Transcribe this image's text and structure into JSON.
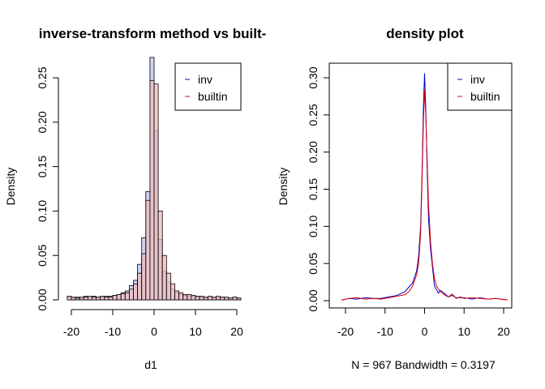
{
  "chart_data": [
    {
      "type": "histogram",
      "title": "inverse-transform method vs built-",
      "xlabel": "d1",
      "ylabel": "Density",
      "xlim": [
        -20,
        20
      ],
      "ylim": [
        0,
        0.27
      ],
      "x_ticks": [
        -20,
        -10,
        0,
        10,
        20
      ],
      "y_ticks": [
        0.0,
        0.05,
        0.1,
        0.15,
        0.2,
        0.25
      ],
      "x_tick_labels": [
        "-20",
        "-10",
        "0",
        "10",
        "20"
      ],
      "y_tick_labels": [
        "0.00",
        "0.05",
        "0.10",
        "0.15",
        "0.20",
        "0.25"
      ],
      "bin_width": 1,
      "bin_starts": [
        -21,
        -20,
        -19,
        -18,
        -17,
        -16,
        -15,
        -14,
        -13,
        -12,
        -11,
        -10,
        -9,
        -8,
        -7,
        -6,
        -5,
        -4,
        -3,
        -2,
        -1,
        0,
        1,
        2,
        3,
        4,
        5,
        6,
        7,
        8,
        9,
        10,
        11,
        12,
        13,
        14,
        15,
        16,
        17,
        18,
        19,
        20
      ],
      "series": [
        {
          "name": "inv",
          "color": "#c7cdf3",
          "values": [
            0.003,
            0.002,
            0.003,
            0.002,
            0.004,
            0.003,
            0.004,
            0.003,
            0.003,
            0.004,
            0.004,
            0.005,
            0.006,
            0.008,
            0.01,
            0.016,
            0.022,
            0.04,
            0.07,
            0.122,
            0.273,
            0.19,
            0.068,
            0.032,
            0.02,
            0.012,
            0.008,
            0.006,
            0.005,
            0.004,
            0.004,
            0.003,
            0.003,
            0.002,
            0.003,
            0.002,
            0.002,
            0.003,
            0.002,
            0.002,
            0.003,
            0.002
          ]
        },
        {
          "name": "builtin",
          "color": "#f2bcbc",
          "values": [
            0.004,
            0.003,
            0.002,
            0.003,
            0.003,
            0.004,
            0.003,
            0.003,
            0.004,
            0.003,
            0.003,
            0.005,
            0.006,
            0.007,
            0.008,
            0.012,
            0.018,
            0.03,
            0.052,
            0.112,
            0.247,
            0.243,
            0.1,
            0.05,
            0.03,
            0.018,
            0.01,
            0.008,
            0.006,
            0.006,
            0.005,
            0.004,
            0.004,
            0.003,
            0.004,
            0.003,
            0.004,
            0.003,
            0.003,
            0.002,
            0.003,
            0.002
          ]
        }
      ],
      "legend": {
        "position": "top-right",
        "entries": [
          "inv",
          "builtin"
        ]
      }
    },
    {
      "type": "line",
      "title": "density plot",
      "xlabel": "N = 967   Bandwidth = 0.3197",
      "ylabel": "Density",
      "xlim": [
        -21,
        21
      ],
      "ylim": [
        0,
        0.32
      ],
      "x_ticks": [
        -20,
        -10,
        0,
        10,
        20
      ],
      "y_ticks": [
        0.0,
        0.05,
        0.1,
        0.15,
        0.2,
        0.25,
        0.3
      ],
      "x_tick_labels": [
        "-20",
        "-10",
        "0",
        "10",
        "20"
      ],
      "y_tick_labels": [
        "0.00",
        "0.05",
        "0.10",
        "0.15",
        "0.20",
        "0.25",
        "0.30"
      ],
      "series": [
        {
          "name": "inv",
          "color": "#0000cd",
          "points": [
            [
              -21,
              0.001
            ],
            [
              -19,
              0.003
            ],
            [
              -17,
              0.002
            ],
            [
              -15,
              0.004
            ],
            [
              -13,
              0.003
            ],
            [
              -11,
              0.003
            ],
            [
              -9,
              0.005
            ],
            [
              -7,
              0.007
            ],
            [
              -5,
              0.012
            ],
            [
              -4,
              0.018
            ],
            [
              -3,
              0.024
            ],
            [
              -2,
              0.04
            ],
            [
              -1.5,
              0.06
            ],
            [
              -1,
              0.1
            ],
            [
              -0.6,
              0.18
            ],
            [
              -0.3,
              0.26
            ],
            [
              0,
              0.306
            ],
            [
              0.3,
              0.26
            ],
            [
              0.6,
              0.19
            ],
            [
              1,
              0.11
            ],
            [
              1.5,
              0.07
            ],
            [
              2,
              0.045
            ],
            [
              2.5,
              0.02
            ],
            [
              3,
              0.015
            ],
            [
              3.5,
              0.01
            ],
            [
              4,
              0.014
            ],
            [
              5,
              0.01
            ],
            [
              6,
              0.005
            ],
            [
              7,
              0.007
            ],
            [
              8,
              0.004
            ],
            [
              10,
              0.004
            ],
            [
              12,
              0.002
            ],
            [
              14,
              0.004
            ],
            [
              16,
              0.002
            ],
            [
              18,
              0.003
            ],
            [
              21,
              0.001
            ]
          ]
        },
        {
          "name": "builtin",
          "color": "#e00000",
          "points": [
            [
              -21,
              0.001
            ],
            [
              -19,
              0.003
            ],
            [
              -17,
              0.004
            ],
            [
              -15,
              0.002
            ],
            [
              -13,
              0.003
            ],
            [
              -11,
              0.002
            ],
            [
              -9,
              0.004
            ],
            [
              -7,
              0.006
            ],
            [
              -5,
              0.008
            ],
            [
              -4,
              0.012
            ],
            [
              -3,
              0.02
            ],
            [
              -2,
              0.035
            ],
            [
              -1.5,
              0.05
            ],
            [
              -1,
              0.09
            ],
            [
              -0.6,
              0.17
            ],
            [
              -0.3,
              0.24
            ],
            [
              0,
              0.283
            ],
            [
              0.3,
              0.25
            ],
            [
              0.6,
              0.2
            ],
            [
              1,
              0.13
            ],
            [
              1.5,
              0.08
            ],
            [
              2,
              0.05
            ],
            [
              2.5,
              0.03
            ],
            [
              3,
              0.02
            ],
            [
              4,
              0.012
            ],
            [
              5,
              0.008
            ],
            [
              6,
              0.005
            ],
            [
              7,
              0.009
            ],
            [
              8,
              0.003
            ],
            [
              9,
              0.005
            ],
            [
              10,
              0.003
            ],
            [
              12,
              0.004
            ],
            [
              14,
              0.003
            ],
            [
              16,
              0.002
            ],
            [
              18,
              0.003
            ],
            [
              21,
              0.001
            ]
          ]
        }
      ],
      "legend": {
        "position": "top-right",
        "entries": [
          "inv",
          "builtin"
        ]
      }
    }
  ]
}
